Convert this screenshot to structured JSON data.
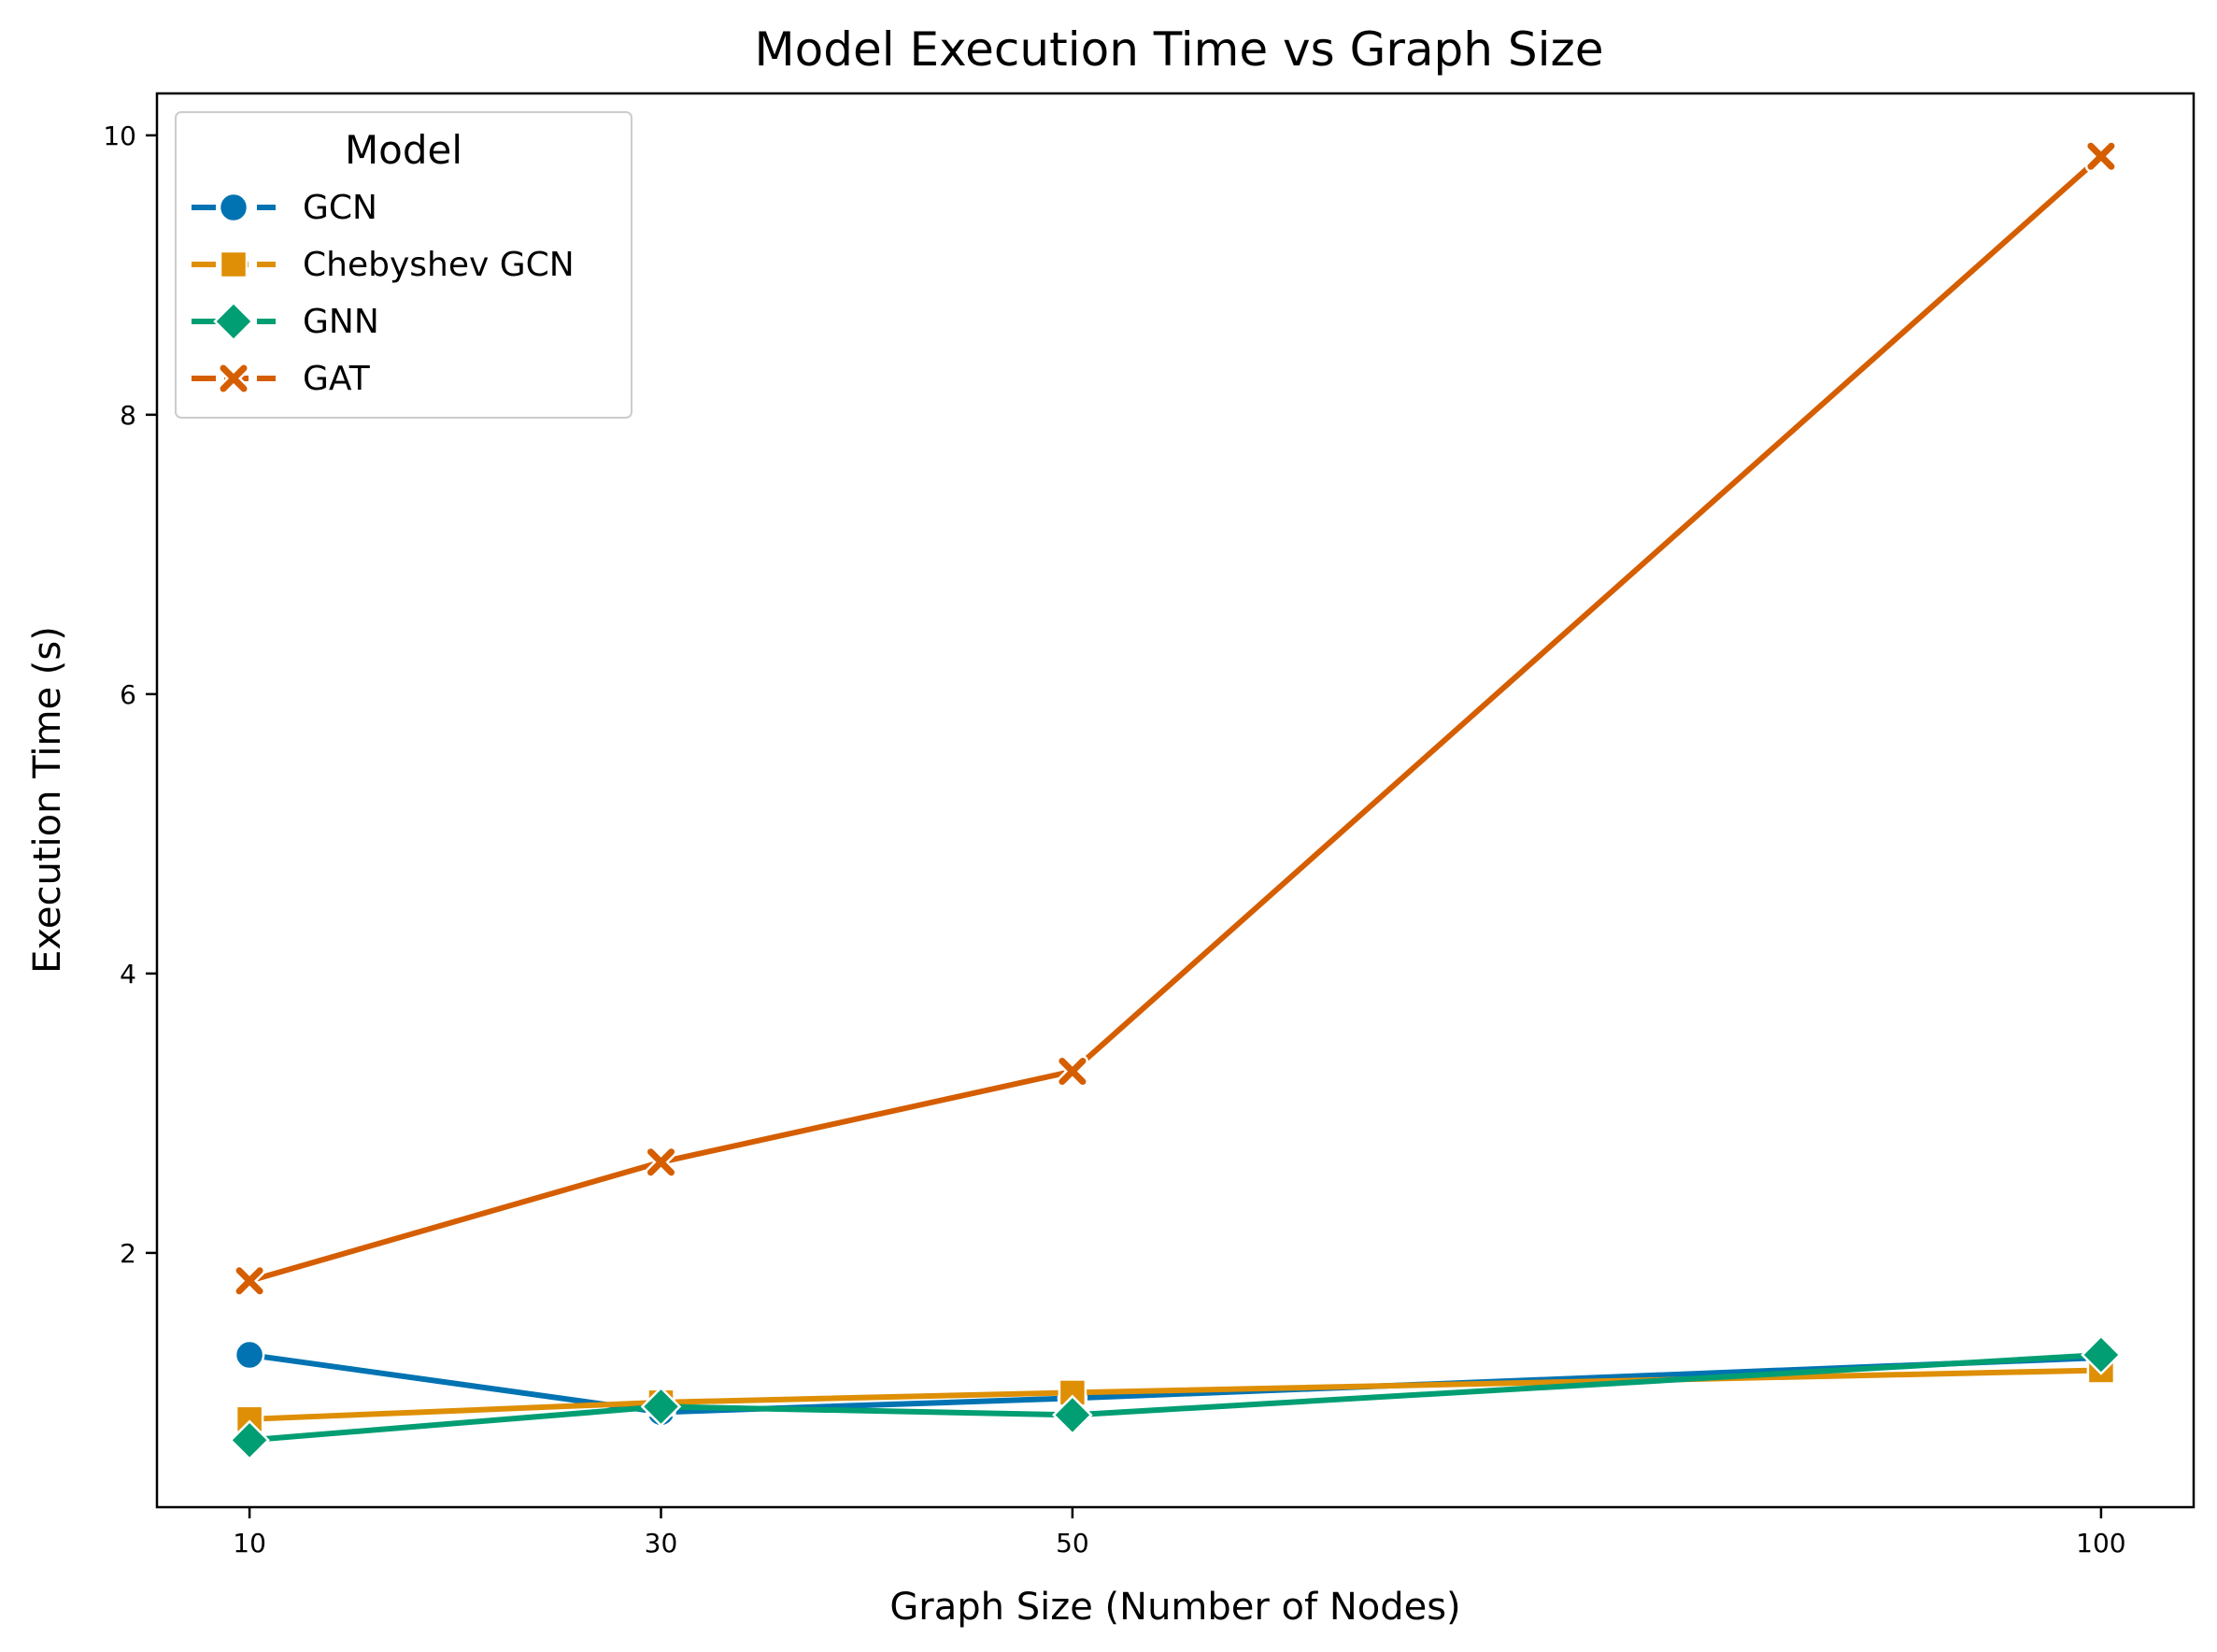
{
  "chart_data": {
    "type": "line",
    "title": "Model Execution Time vs Graph Size",
    "xlabel": "Graph Size (Number of Nodes)",
    "ylabel": "Execution Time (s)",
    "x": [
      10,
      30,
      50,
      100
    ],
    "xlim": [
      5.5,
      104.5
    ],
    "ylim": [
      0.18,
      10.3
    ],
    "xticks": [
      10,
      30,
      50,
      100
    ],
    "yticks": [
      2,
      4,
      6,
      8,
      10
    ],
    "grid": false,
    "legend": {
      "title": "Model",
      "placement": "top-left"
    },
    "series": [
      {
        "name": "GCN",
        "color": "#0173b2",
        "marker": "circle",
        "values": [
          1.27,
          0.86,
          0.96,
          1.25
        ]
      },
      {
        "name": "Chebyshev GCN",
        "color": "#de8f05",
        "marker": "square",
        "values": [
          0.81,
          0.93,
          1.0,
          1.16
        ]
      },
      {
        "name": "GNN",
        "color": "#029e73",
        "marker": "diamond",
        "values": [
          0.66,
          0.9,
          0.84,
          1.27
        ]
      },
      {
        "name": "GAT",
        "color": "#d55e00",
        "marker": "x",
        "values": [
          1.8,
          2.65,
          3.3,
          9.85
        ]
      }
    ]
  }
}
